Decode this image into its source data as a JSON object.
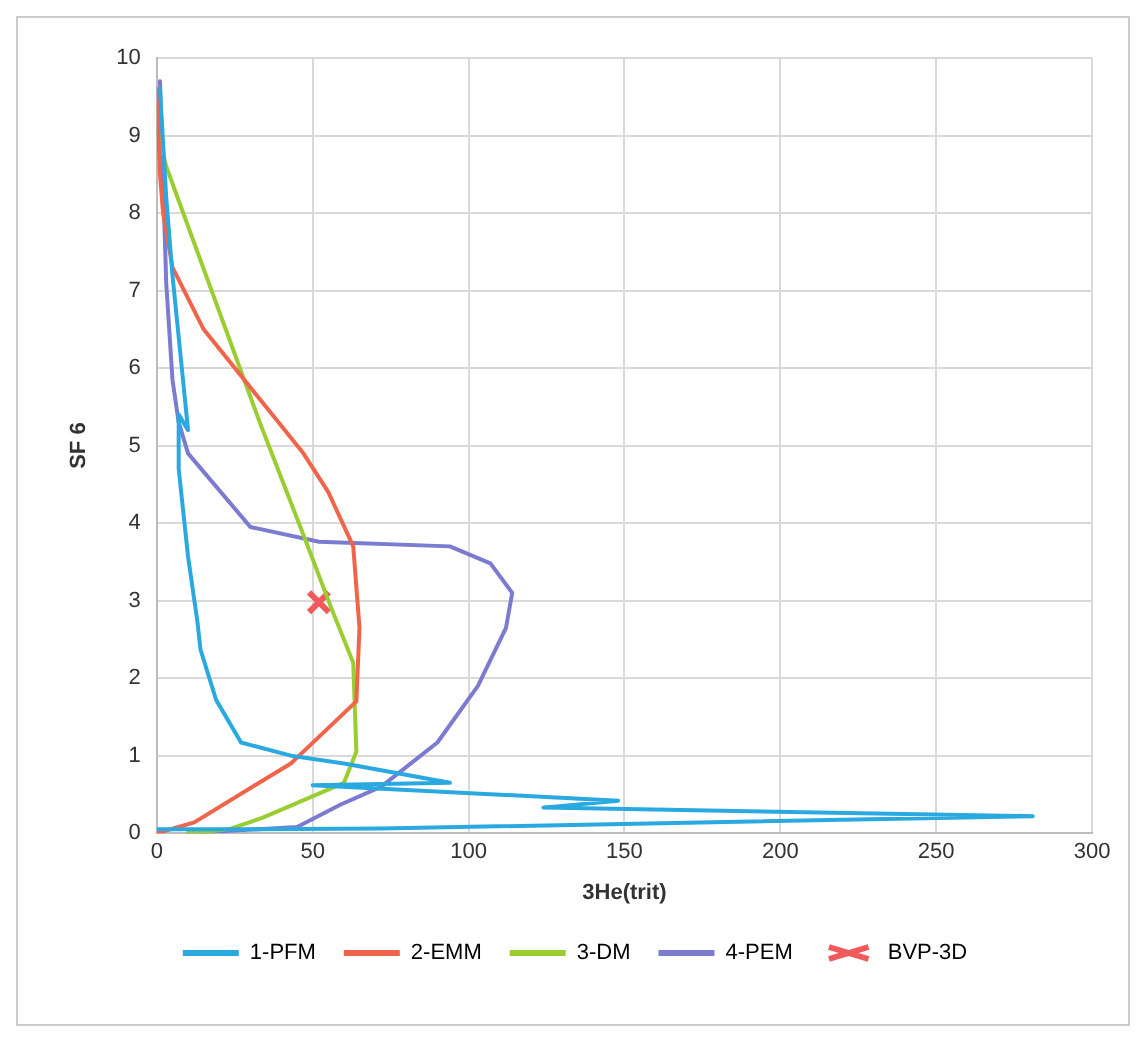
{
  "chart_data": {
    "type": "line",
    "xlabel": "3He(trit)",
    "ylabel": "SF 6",
    "xlim": [
      0,
      300
    ],
    "xticks": [
      0,
      50,
      100,
      150,
      200,
      250,
      300
    ],
    "ylim": [
      0,
      10
    ],
    "yticks": [
      0,
      1,
      2,
      3,
      4,
      5,
      6,
      7,
      8,
      9,
      10
    ],
    "grid": true,
    "legend": "bottom",
    "marker": "none",
    "line_style": "solid",
    "series": [
      {
        "name": "1-PFM",
        "color": "#29a9e0",
        "x": [
          1,
          3,
          5,
          8,
          10,
          7,
          7,
          10,
          13,
          14,
          19,
          27,
          43,
          60,
          94,
          50,
          148,
          124,
          281,
          72,
          30,
          0
        ],
        "values": [
          9.6,
          8.2,
          7.2,
          6,
          5.2,
          5.4,
          4.7,
          3.57,
          2.73,
          2.37,
          1.72,
          1.17,
          1,
          0.9,
          0.65,
          0.62,
          0.42,
          0.33,
          0.22,
          0.06,
          0.05,
          0.05
        ]
      },
      {
        "name": "2-EMM",
        "color": "#f0654a",
        "x": [
          0,
          1,
          2,
          5,
          15,
          25,
          35,
          47,
          55,
          63,
          65,
          64,
          43,
          12,
          0
        ],
        "values": [
          9.6,
          8.5,
          8,
          7.3,
          6.5,
          6,
          5.5,
          4.9,
          4.4,
          3.7,
          2.65,
          1.7,
          0.9,
          0.14,
          0
        ]
      },
      {
        "name": "3-DM",
        "color": "#9acd32",
        "x": [
          0,
          3,
          33,
          47,
          56,
          63,
          64,
          60,
          34,
          23,
          10
        ],
        "values": [
          9.1,
          8.6,
          5.3,
          3.85,
          2.9,
          2.2,
          1.05,
          0.65,
          0.2,
          0.05,
          0
        ]
      },
      {
        "name": "4-PEM",
        "color": "#7b7bd1",
        "x": [
          1,
          3,
          5,
          7,
          10,
          30,
          52,
          94,
          107,
          114,
          112,
          103,
          90,
          72,
          59,
          45,
          10
        ],
        "values": [
          9.7,
          7.1,
          5.85,
          5.3,
          4.9,
          3.95,
          3.76,
          3.7,
          3.48,
          3.1,
          2.65,
          1.9,
          1.17,
          0.6,
          0.37,
          0.08,
          0
        ]
      },
      {
        "name": "BVP-3D",
        "type": "scatter",
        "marker": "cross",
        "color": "#f05a5a",
        "x": [
          52
        ],
        "values": [
          2.98
        ]
      }
    ]
  }
}
